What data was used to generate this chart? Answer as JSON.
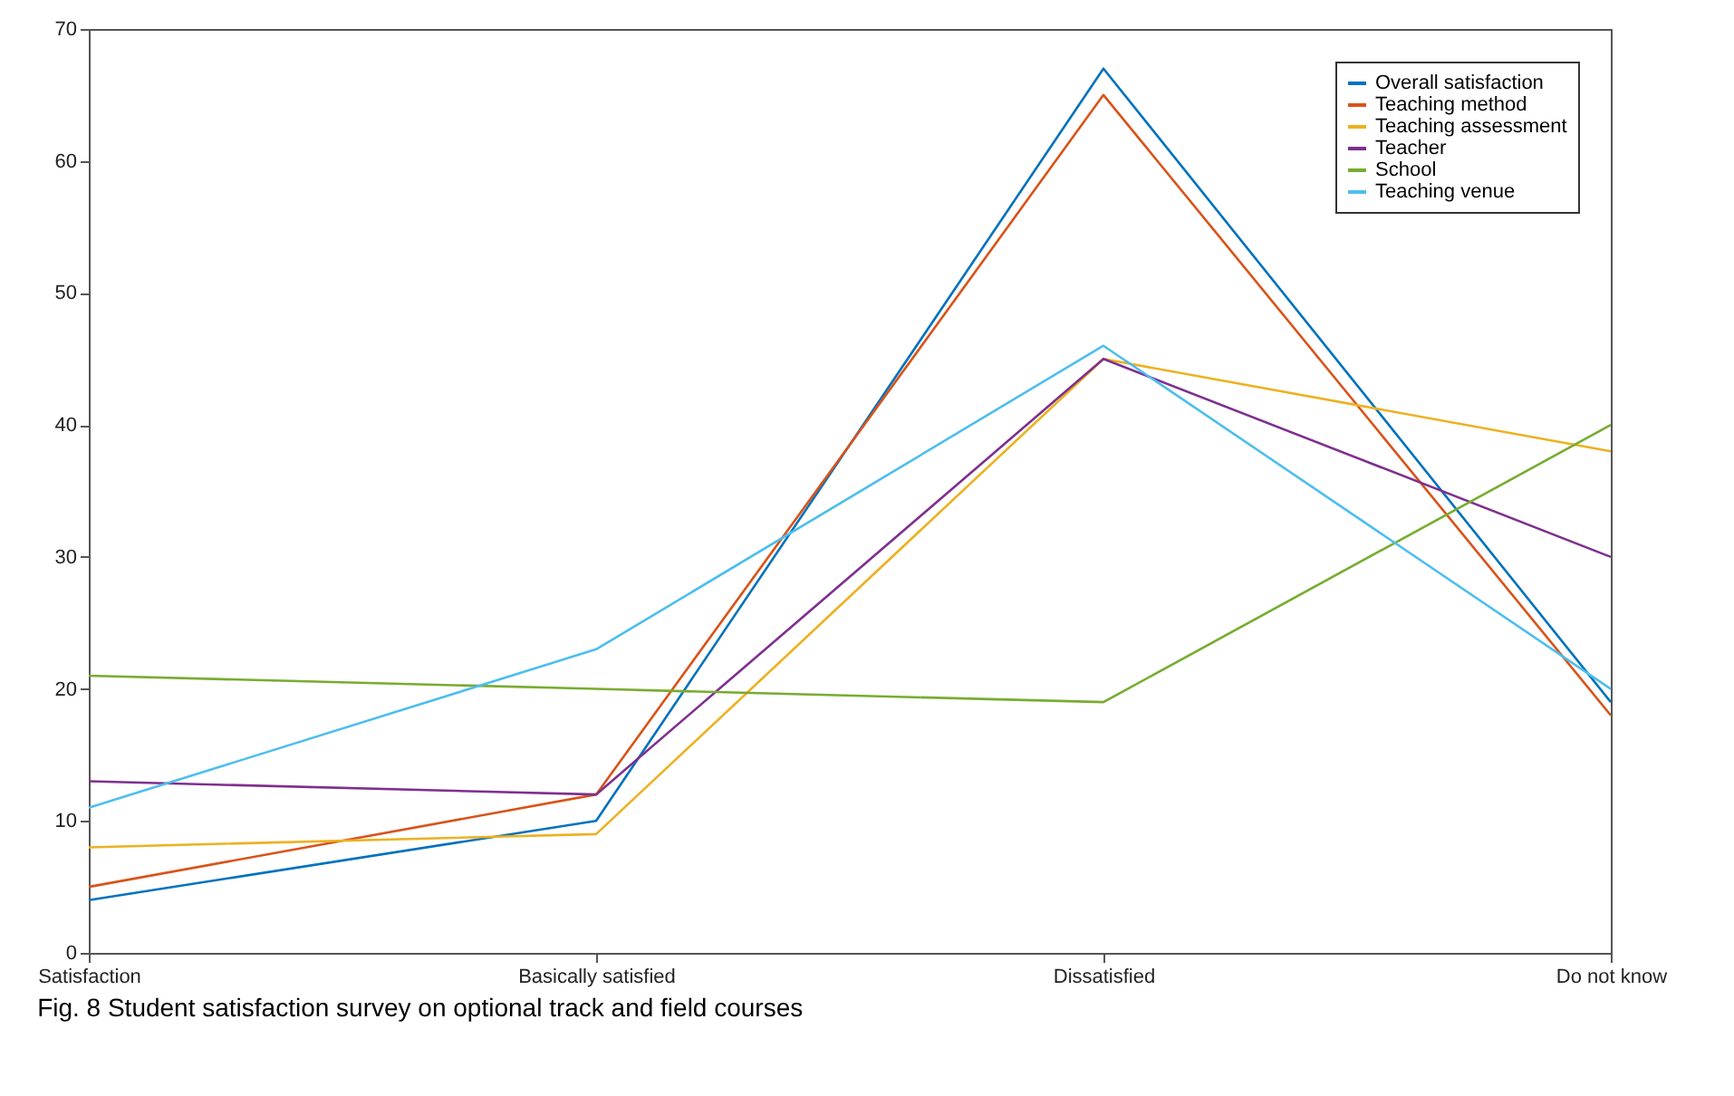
{
  "chart_data": {
    "type": "line",
    "categories": [
      "Satisfaction",
      "Basically satisfied",
      "Dissatisfied",
      "Do not know"
    ],
    "series": [
      {
        "name": "Overall satisfaction",
        "color": "#0072bd",
        "values": [
          4,
          10,
          67,
          19
        ]
      },
      {
        "name": "Teaching method",
        "color": "#d95319",
        "values": [
          5,
          12,
          65,
          18
        ]
      },
      {
        "name": "Teaching assessment",
        "color": "#edb120",
        "values": [
          8,
          9,
          45,
          38
        ]
      },
      {
        "name": "Teacher",
        "color": "#7e2f8e",
        "values": [
          13,
          12,
          45,
          30
        ]
      },
      {
        "name": "School",
        "color": "#77ac30",
        "values": [
          21,
          20,
          19,
          40
        ]
      },
      {
        "name": "Teaching venue",
        "color": "#4dbeee",
        "values": [
          11,
          23,
          46,
          20
        ]
      }
    ],
    "ylim": [
      0,
      70
    ],
    "yticks": [
      0,
      10,
      20,
      30,
      40,
      50,
      60,
      70
    ],
    "grid": false,
    "legend": "top right",
    "marker": "none",
    "line_style": "solid",
    "annotations": [
      "Fig. 8 Student satisfaction survey on optional track and field courses"
    ]
  }
}
